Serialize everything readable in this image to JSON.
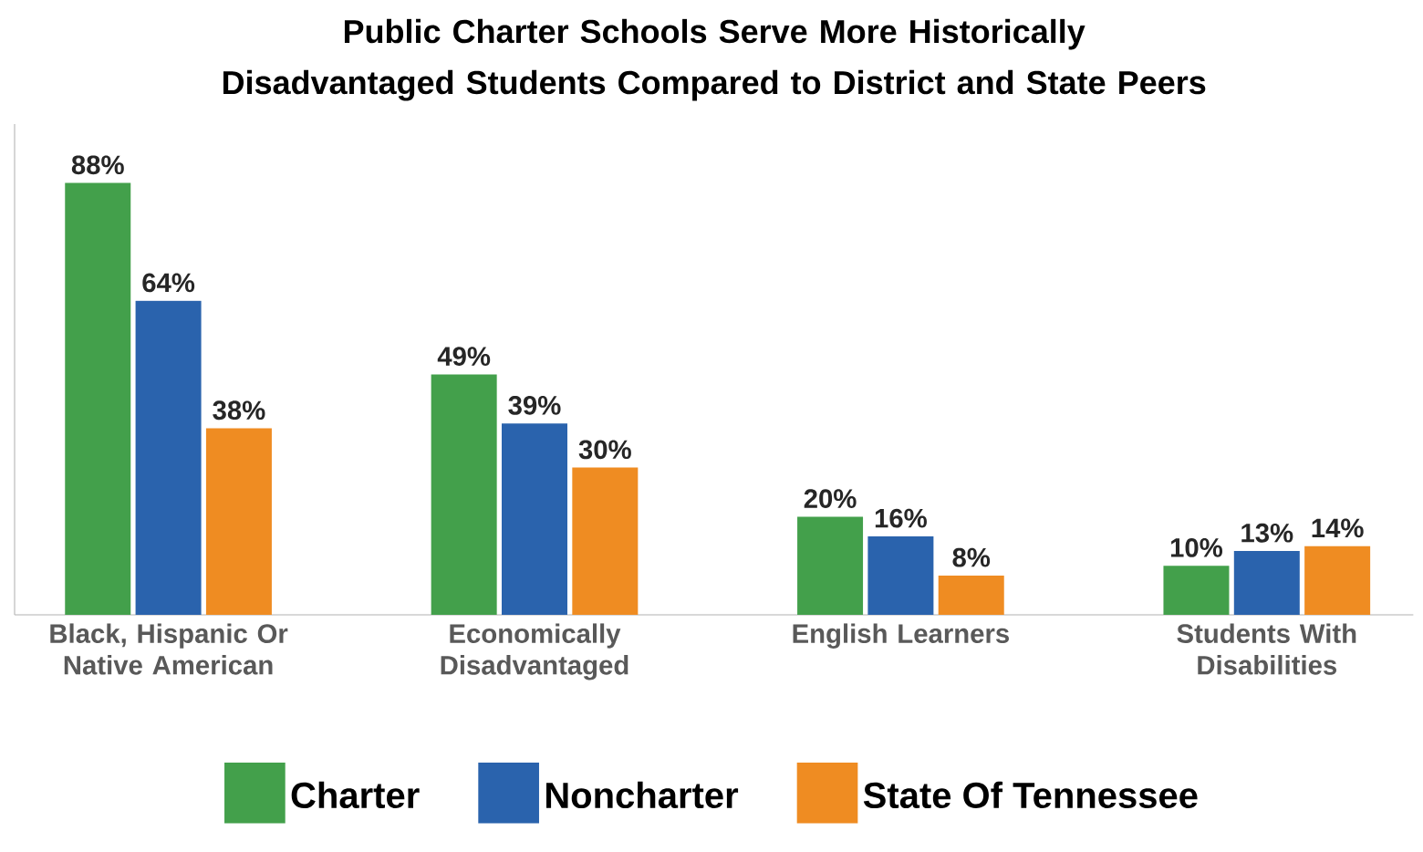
{
  "chart_data": {
    "type": "bar",
    "title": "Public Charter Schools Serve More Historically Disadvantaged Students Compared to District and State Peers",
    "categories": [
      "Black, Hispanic Or Native American",
      "Economically Disadvantaged",
      "English Learners",
      "Students With Disabilities"
    ],
    "series": [
      {
        "name": "Charter",
        "color": "#43a04b",
        "values": [
          88,
          49,
          20,
          10
        ],
        "value_labels": [
          "88%",
          "49%",
          "20%",
          "10%"
        ]
      },
      {
        "name": "Noncharter",
        "color": "#2a63ad",
        "values": [
          64,
          39,
          16,
          13
        ],
        "value_labels": [
          "64%",
          "39%",
          "16%",
          "13%"
        ]
      },
      {
        "name": "State Of Tennessee",
        "color": "#ef8c22",
        "values": [
          38,
          30,
          8,
          14
        ],
        "value_labels": [
          "38%",
          "30%",
          "8%",
          "14%"
        ]
      }
    ],
    "ylim": [
      0,
      100
    ],
    "legend": "bottom"
  }
}
